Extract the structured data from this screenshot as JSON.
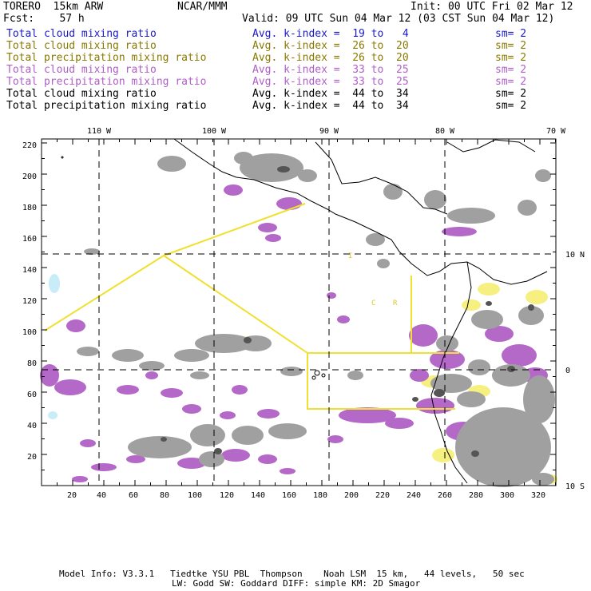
{
  "header": {
    "model": "TORERO  15km ARW",
    "org": "NCAR/MMM",
    "init": "Init: 00 UTC Fri 02 Mar 12",
    "fcst": "Fcst:    57 h",
    "valid": "Valid: 09 UTC Sun 04 Mar 12 (03 CST Sun 04 Mar 12)"
  },
  "legend": [
    {
      "label": "Total cloud mixing ratio",
      "kindex": "Avg. k-index =  19 to   4",
      "sm": "sm= 2",
      "color": "#1a1ac8"
    },
    {
      "label": "Total cloud mixing ratio",
      "kindex": "Avg. k-index =  26 to  20",
      "sm": "sm= 2",
      "color": "#8a7a00"
    },
    {
      "label": "Total precipitation mixing ratio",
      "kindex": "Avg. k-index =  26 to  20",
      "sm": "sm= 2",
      "color": "#8a7a00"
    },
    {
      "label": "Total cloud mixing ratio",
      "kindex": "Avg. k-index =  33 to  25",
      "sm": "sm= 2",
      "color": "#b05fc8"
    },
    {
      "label": "Total precipitation mixing ratio",
      "kindex": "Avg. k-index =  33 to  25",
      "sm": "sm= 2",
      "color": "#b05fc8"
    },
    {
      "label": "Total cloud mixing ratio",
      "kindex": "Avg. k-index =  44 to  34",
      "sm": "sm= 2",
      "color": "#000000"
    },
    {
      "label": "Total precipitation mixing ratio",
      "kindex": "Avg. k-index =  44 to  34",
      "sm": "sm= 2",
      "color": "#000000"
    }
  ],
  "map": {
    "lon_labels": [
      "110 W",
      "100 W",
      "90 W",
      "80 W",
      "70 W"
    ],
    "lat_labels": [
      "10 N",
      "0",
      "10 S"
    ],
    "x_ticks": [
      "20",
      "40",
      "60",
      "80",
      "100",
      "120",
      "140",
      "160",
      "180",
      "200",
      "220",
      "240",
      "260",
      "280",
      "300",
      "320"
    ],
    "y_ticks": [
      "20",
      "40",
      "60",
      "80",
      "100",
      "120",
      "140",
      "160",
      "180",
      "200",
      "220"
    ],
    "region_labels": [
      "I",
      "C",
      "R"
    ]
  },
  "footer": {
    "line1": "Model Info: V3.3.1   Tiedtke YSU PBL  Thompson    Noah LSM  15 km,   44 levels,   50 sec",
    "line2": "LW: Godd SW: Goddard DIFF: simple KM: 2D Smagor"
  },
  "colors": {
    "cloud_gray": "#a0a0a0",
    "precip_violet": "#b468c8",
    "moderate_yellow": "#f5f080",
    "low_cyan": "#c8ecf8",
    "boundary_yellow": "#f0e030"
  }
}
